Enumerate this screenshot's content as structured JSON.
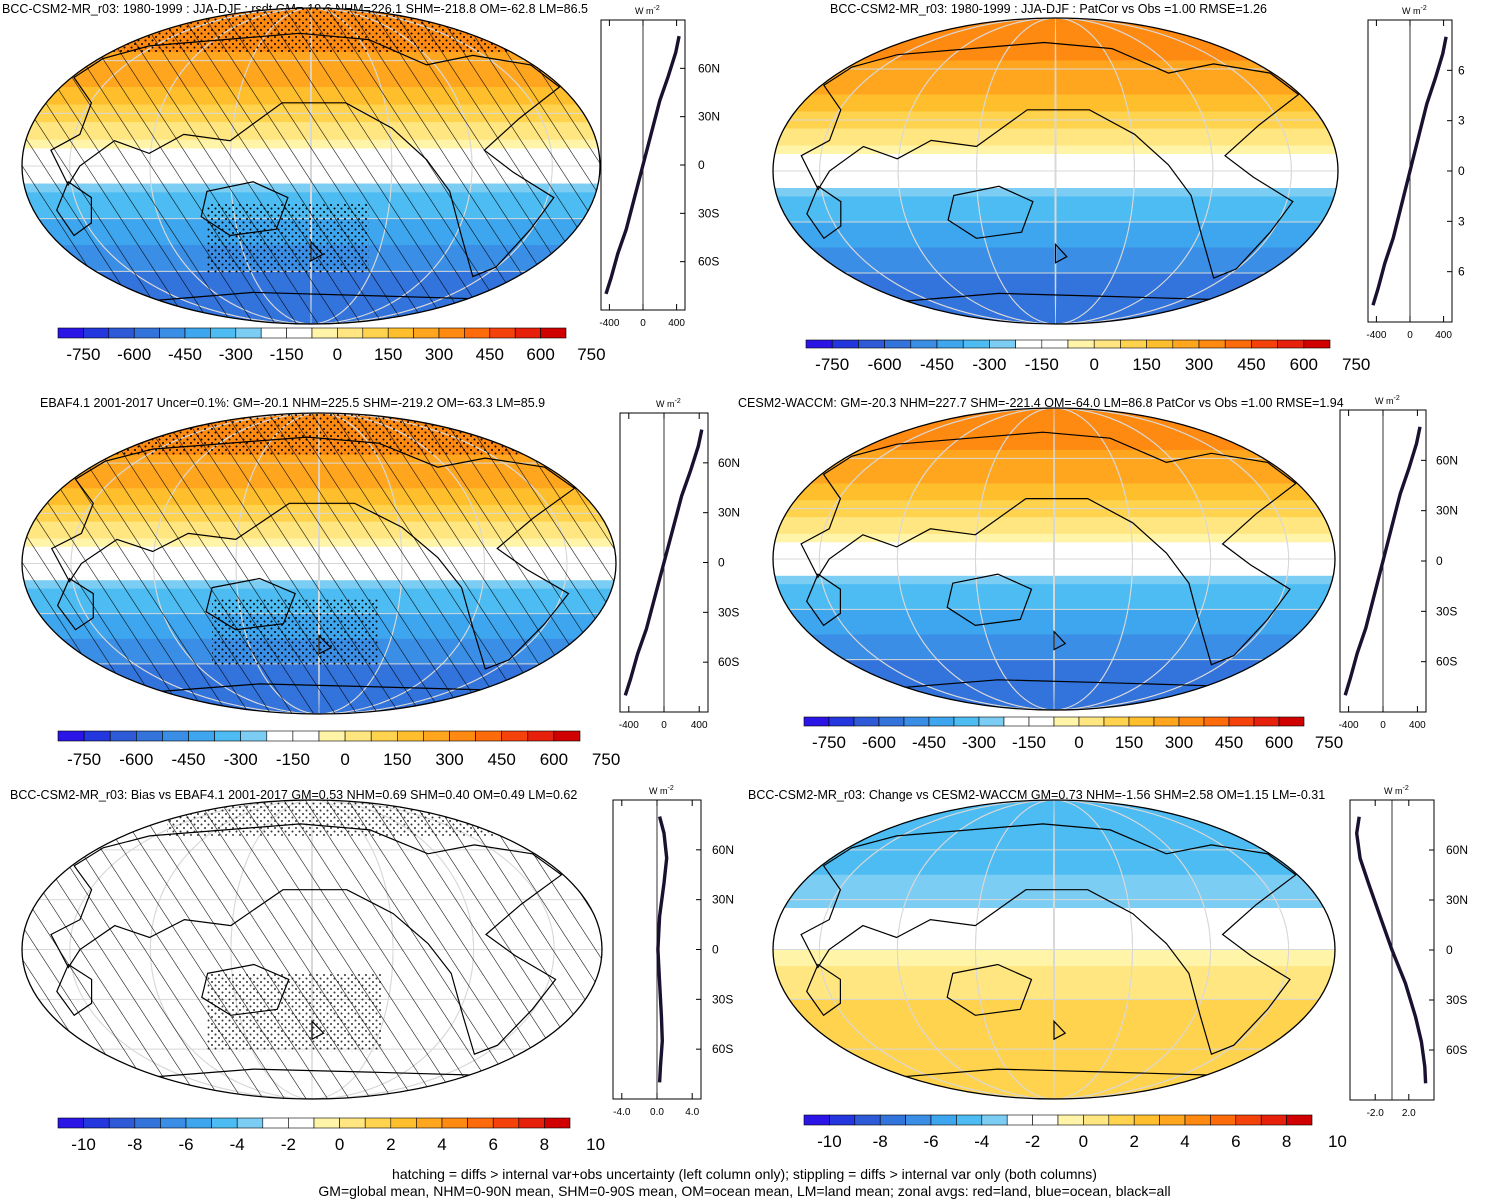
{
  "panels": [
    {
      "id": "p1",
      "title": "BCC-CSM2-MR_r03: 1980-1999 : JJA-DJF : rsdt GM=-19.6 NHM=226.1 SHM=-218.8 OM=-62.8 LM=86.5",
      "hatch": true,
      "stipple": "strong",
      "field": "solar",
      "colorbar": "a",
      "zonal_ticks": [
        "-400",
        "0",
        "400"
      ],
      "lat_labels": [
        "60N",
        "30N",
        "0",
        "30S",
        "60S"
      ]
    },
    {
      "id": "p2",
      "title": "BCC-CSM2-MR_r03: 1980-1999 : JJA-DJF : PatCor vs Obs =1.00 RMSE=1.26",
      "hatch": false,
      "stipple": "none",
      "field": "solar",
      "colorbar": "a",
      "zonal_ticks": [
        "-400",
        "0",
        "400"
      ],
      "lat_labels": [
        "6",
        "3",
        "0",
        "3",
        "6"
      ]
    },
    {
      "id": "p3",
      "title": "EBAF4.1 2001-2017 Uncer=0.1%: GM=-20.1 NHM=225.5 SHM=-219.2 OM=-63.3 LM=85.9",
      "hatch": true,
      "stipple": "strong",
      "field": "solar",
      "colorbar": "a",
      "zonal_ticks": [
        "-400",
        "0",
        "400"
      ],
      "lat_labels": [
        "60N",
        "30N",
        "0",
        "30S",
        "60S"
      ]
    },
    {
      "id": "p4",
      "title": "CESM2-WACCM: GM=-20.3 NHM=227.7 SHM=-221.4 OM=-64.0 LM=86.8 PatCor vs Obs =1.00 RMSE=1.94",
      "hatch": false,
      "stipple": "none",
      "field": "solar",
      "colorbar": "a",
      "zonal_ticks": [
        "-400",
        "0",
        "400"
      ],
      "lat_labels": [
        "60N",
        "30N",
        "0",
        "30S",
        "60S"
      ]
    },
    {
      "id": "p5",
      "title": "BCC-CSM2-MR_r03: Bias vs EBAF4.1 2001-2017 GM=0.53 NHM=0.69 SHM=0.40 OM=0.49 LM=0.62",
      "hatch": true,
      "stipple": "light",
      "field": "bias",
      "colorbar": "b",
      "zonal_ticks": [
        "-4.0",
        "0.0",
        "4.0"
      ],
      "lat_labels": [
        "60N",
        "30N",
        "0",
        "30S",
        "60S"
      ]
    },
    {
      "id": "p6",
      "title": "BCC-CSM2-MR_r03: Change vs CESM2-WACCM GM=0.73 NHM=-1.56 SHM=2.58 OM=1.15 LM=-0.31",
      "hatch": false,
      "stipple": "none",
      "field": "change",
      "colorbar": "b",
      "zonal_ticks": [
        "-2.0",
        "2.0"
      ],
      "lat_labels": [
        "60N",
        "30N",
        "0",
        "30S",
        "60S"
      ]
    }
  ],
  "units_label": "W m",
  "units_exponent": "-2",
  "colorbars": {
    "a": {
      "labels": [
        "-750",
        "-600",
        "-450",
        "-300",
        "-150",
        "0",
        "150",
        "300",
        "450",
        "600",
        "750"
      ]
    },
    "b": {
      "labels": [
        "-10",
        "-8",
        "-6",
        "-4",
        "-2",
        "0",
        "2",
        "4",
        "6",
        "8",
        "10"
      ]
    }
  },
  "palette": [
    "#2a14e6",
    "#2436dd",
    "#2e5ad8",
    "#3373dc",
    "#3a8ee6",
    "#3ea6ee",
    "#4cbcf2",
    "#7ccdf4",
    "#ffffff",
    "#ffffff",
    "#fff4a8",
    "#ffe680",
    "#ffd34e",
    "#ffbf2c",
    "#ffa61e",
    "#ff8a12",
    "#ff6a0a",
    "#f4420a",
    "#e6200a",
    "#d00000"
  ],
  "chart_data": [
    {
      "type": "heatmap",
      "title": "BCC-CSM2-MR_r03: 1980-1999 : JJA-DJF : rsdt GM=-19.6 NHM=226.1 SHM=-218.8 OM=-62.8 LM=86.5",
      "series": [
        {
          "name": "zonal mean",
          "x": [
            -440,
            -380,
            -300,
            -200,
            -100,
            0,
            100,
            200,
            300,
            390,
            430
          ],
          "y": [
            -80,
            -70,
            -55,
            -40,
            -20,
            0,
            20,
            40,
            55,
            70,
            80
          ]
        }
      ],
      "xlim": [
        -500,
        500
      ],
      "ylim": [
        -90,
        90
      ]
    },
    {
      "type": "heatmap",
      "title": "BCC-CSM2-MR_r03: 1980-1999 : JJA-DJF : PatCor vs Obs =1.00 RMSE=1.26",
      "series": [
        {
          "name": "zonal mean",
          "x": [
            -440,
            -380,
            -300,
            -200,
            -100,
            0,
            100,
            200,
            300,
            390,
            430
          ],
          "y": [
            -80,
            -70,
            -55,
            -40,
            -20,
            0,
            20,
            40,
            55,
            70,
            80
          ]
        }
      ],
      "xlim": [
        -500,
        500
      ],
      "ylim": [
        -90,
        90
      ]
    },
    {
      "type": "heatmap",
      "title": "EBAF4.1 2001-2017 Uncer=0.1%: GM=-20.1 NHM=225.5 SHM=-219.2 OM=-63.3 LM=85.9",
      "series": [
        {
          "name": "zonal mean",
          "x": [
            -440,
            -380,
            -300,
            -200,
            -100,
            0,
            100,
            200,
            300,
            390,
            430
          ],
          "y": [
            -80,
            -70,
            -55,
            -40,
            -20,
            0,
            20,
            40,
            55,
            70,
            80
          ]
        }
      ],
      "xlim": [
        -500,
        500
      ],
      "ylim": [
        -90,
        90
      ]
    },
    {
      "type": "heatmap",
      "title": "CESM2-WACCM: GM=-20.3 NHM=227.7 SHM=-221.4 OM=-64.0 LM=86.8 PatCor vs Obs =1.00 RMSE=1.94",
      "series": [
        {
          "name": "zonal mean",
          "x": [
            -440,
            -380,
            -300,
            -200,
            -100,
            0,
            100,
            200,
            300,
            390,
            430
          ],
          "y": [
            -80,
            -70,
            -55,
            -40,
            -20,
            0,
            20,
            40,
            55,
            70,
            80
          ]
        }
      ],
      "xlim": [
        -500,
        500
      ],
      "ylim": [
        -90,
        90
      ]
    },
    {
      "type": "heatmap",
      "title": "BCC-CSM2-MR_r03: Bias vs EBAF4.1 2001-2017 GM=0.53 NHM=0.69 SHM=0.40 OM=0.49 LM=0.62",
      "series": [
        {
          "name": "zonal mean",
          "x": [
            0.3,
            0.4,
            0.6,
            0.5,
            0.3,
            0.1,
            0.3,
            0.8,
            1.1,
            0.8,
            0.3
          ],
          "y": [
            -80,
            -70,
            -55,
            -40,
            -20,
            0,
            20,
            40,
            55,
            70,
            80
          ]
        }
      ],
      "xlim": [
        -5,
        5
      ],
      "ylim": [
        -90,
        90
      ]
    },
    {
      "type": "heatmap",
      "title": "BCC-CSM2-MR_r03: Change vs CESM2-WACCM GM=0.73 NHM=-1.56 SHM=2.58 OM=1.15 LM=-0.31",
      "series": [
        {
          "name": "zonal mean",
          "x": [
            4.0,
            3.9,
            3.5,
            2.8,
            1.6,
            0.0,
            -1.4,
            -2.8,
            -3.8,
            -4.2,
            -3.9
          ],
          "y": [
            -80,
            -70,
            -55,
            -40,
            -20,
            0,
            20,
            40,
            55,
            70,
            80
          ]
        }
      ],
      "xlim": [
        -5,
        5
      ],
      "ylim": [
        -90,
        90
      ]
    }
  ],
  "footer": {
    "line1": "hatching = diffs > internal var+obs uncertainty (left column only); stippling = diffs > internal var only (both columns)",
    "line2": "GM=global mean, NHM=0-90N mean, SHM=0-90S mean, OM=ocean mean, LM=land mean; zonal avgs: red=land, blue=ocean, black=all"
  }
}
